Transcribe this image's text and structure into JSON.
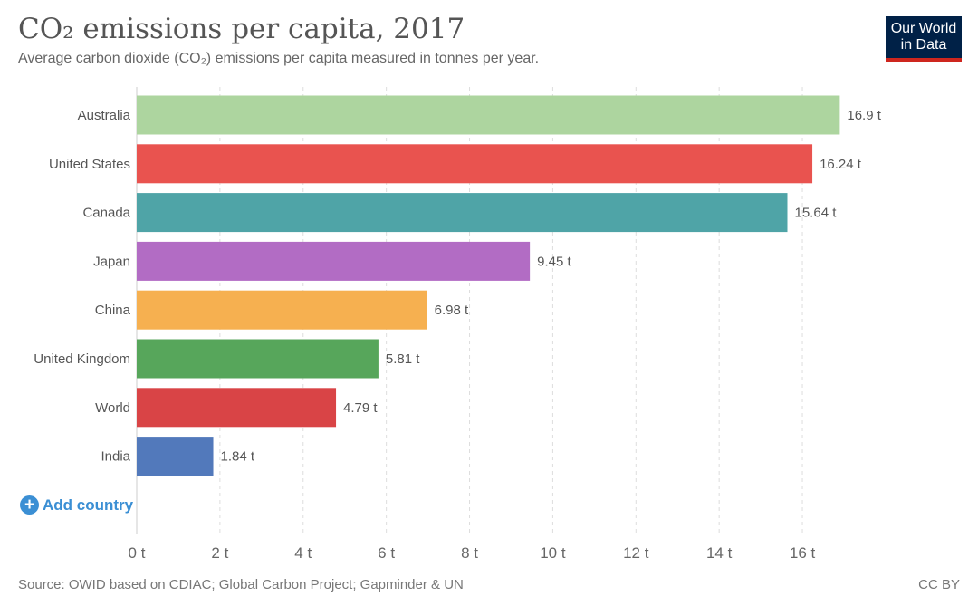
{
  "header": {
    "title": "CO₂ emissions per capita, 2017",
    "subtitle": "Average carbon dioxide (CO₂) emissions per capita measured in tonnes per year."
  },
  "logo": {
    "line1": "Our World",
    "line2": "in Data"
  },
  "controls": {
    "add_country_label": "Add country"
  },
  "footer": {
    "source": "Source: OWID based on CDIAC; Global Carbon Project; Gapminder & UN",
    "license": "CC BY"
  },
  "chart_data": {
    "type": "bar",
    "orientation": "horizontal",
    "title": "CO₂ emissions per capita, 2017",
    "xlabel": "",
    "ylabel": "",
    "unit": "t",
    "xlim": [
      0,
      17.5
    ],
    "grid": true,
    "categories": [
      "Australia",
      "United States",
      "Canada",
      "Japan",
      "China",
      "United Kingdom",
      "World",
      "India"
    ],
    "values": [
      16.9,
      16.24,
      15.64,
      9.45,
      6.98,
      5.81,
      4.79,
      1.84
    ],
    "value_labels": [
      "16.9 t",
      "16.24 t",
      "15.64 t",
      "9.45 t",
      "6.98 t",
      "5.81 t",
      "4.79 t",
      "1.84 t"
    ],
    "colors": [
      "#add59f",
      "#e9534f",
      "#4fa4a7",
      "#b26cc4",
      "#f6b050",
      "#57a65b",
      "#d94446",
      "#5279bb"
    ],
    "x_ticks": [
      0,
      2,
      4,
      6,
      8,
      10,
      12,
      14,
      16
    ],
    "x_tick_labels": [
      "0 t",
      "2 t",
      "4 t",
      "6 t",
      "8 t",
      "10 t",
      "12 t",
      "14 t",
      "16 t"
    ]
  }
}
